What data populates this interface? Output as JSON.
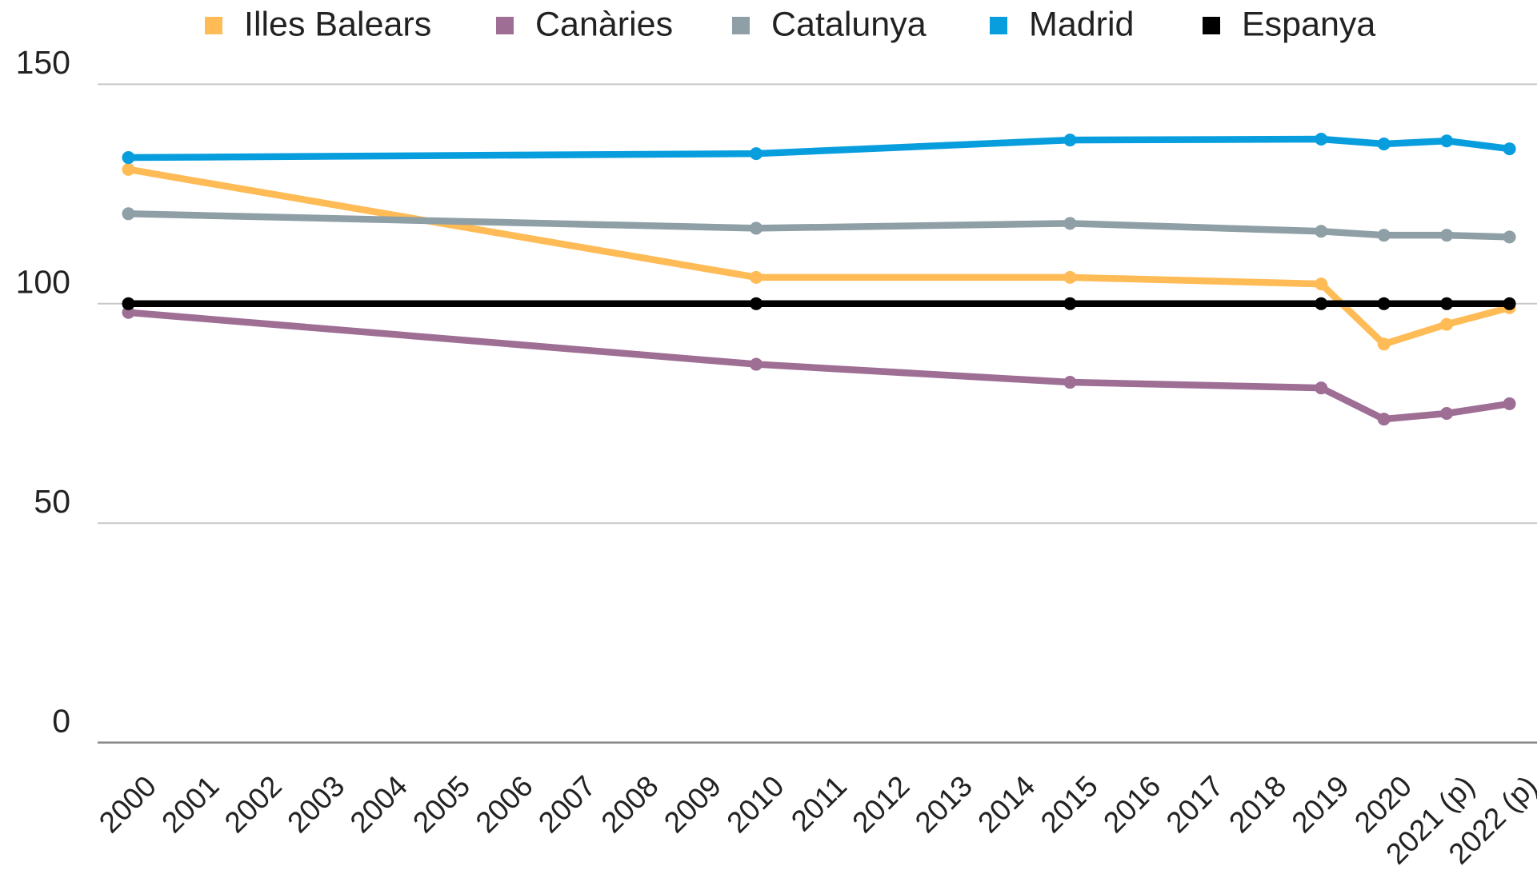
{
  "chart_data": {
    "type": "line",
    "x": [
      2000,
      2010,
      2015,
      2019,
      2020,
      2021,
      2022
    ],
    "series": [
      {
        "name": "Illes Balears",
        "color": "#ffbb55",
        "values": [
          130.6,
          106.0,
          106.0,
          104.5,
          90.8,
          95.3,
          99.1
        ]
      },
      {
        "name": "Canàries",
        "color": "#9e6e95",
        "values": [
          98.0,
          86.2,
          82.1,
          80.8,
          73.7,
          75.0,
          77.2
        ]
      },
      {
        "name": "Catalunya",
        "color": "#8f9fa6",
        "values": [
          120.5,
          117.2,
          118.3,
          116.5,
          115.6,
          115.6,
          115.2
        ]
      },
      {
        "name": "Madrid",
        "color": "#089ede",
        "values": [
          133.3,
          134.2,
          137.3,
          137.5,
          136.4,
          137.1,
          135.3
        ]
      },
      {
        "name": "Espanya",
        "color": "#000000",
        "values": [
          100,
          100,
          100,
          100,
          100,
          100,
          100
        ]
      }
    ],
    "xlim": [
      2000,
      2022
    ],
    "xticks": [
      2000,
      2001,
      2002,
      2003,
      2004,
      2005,
      2006,
      2007,
      2008,
      2009,
      2010,
      2011,
      2012,
      2013,
      2014,
      2015,
      2016,
      2017,
      2018,
      2019,
      2020,
      {
        "value": 2021,
        "label": "2021 (p)"
      },
      {
        "value": 2022,
        "label": "2022 (p)"
      }
    ],
    "ylim": [
      0,
      150
    ],
    "yticks": [
      0,
      50,
      100,
      150
    ],
    "grid": true,
    "legend": "top"
  }
}
